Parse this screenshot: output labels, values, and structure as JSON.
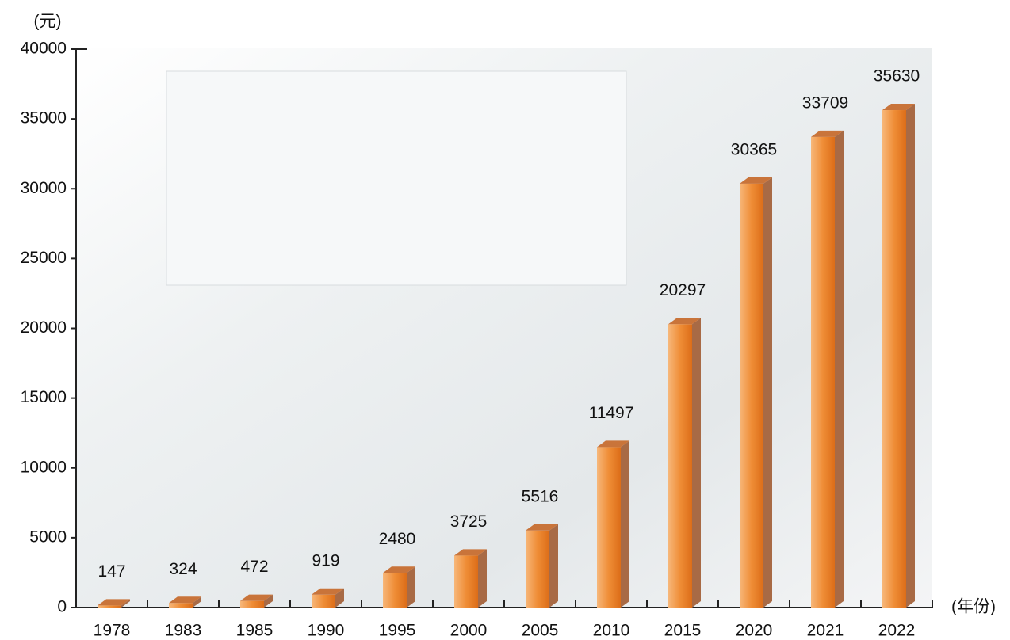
{
  "chart_data": {
    "type": "bar3d",
    "y_label": "(元)",
    "x_label": "(年份)",
    "categories": [
      "1978",
      "1983",
      "1985",
      "1990",
      "1995",
      "2000",
      "2005",
      "2010",
      "2015",
      "2020",
      "2021",
      "2022"
    ],
    "values": [
      147,
      324,
      472,
      919,
      2480,
      3725,
      5516,
      11497,
      20297,
      30365,
      33709,
      35630
    ],
    "color": "#ee8a33",
    "ylim": [
      0,
      40000
    ],
    "yticks": [
      0,
      5000,
      10000,
      15000,
      20000,
      25000,
      30000,
      35000,
      40000
    ],
    "grid": false
  }
}
